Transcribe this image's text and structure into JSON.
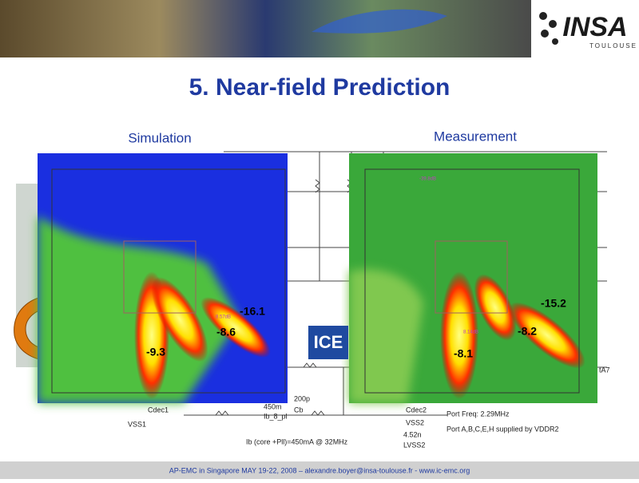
{
  "header": {
    "logo": "INSA",
    "logo_sub": "TOULOUSE"
  },
  "title": "5. Near-field Prediction",
  "panels": [
    {
      "label": "Simulation",
      "marker": "8.57dB",
      "values": [
        -9.3,
        -8.6,
        -16.1
      ]
    },
    {
      "label": "Measurement",
      "marker": "8.14dB",
      "top_marker": "-39.8dB",
      "values": [
        -8.1,
        -8.2,
        -15.2
      ]
    }
  ],
  "circuit": {
    "block": "ICE",
    "labels": [
      "Cdec1",
      "VSS1",
      "200p",
      "Cb",
      "450m",
      "Ib_8_pl",
      "Cdec2",
      "VSS2",
      "4.52n",
      "LVSS2",
      "Port Freq: 2.29MHz",
      "Port A,B,C,E,H supplied by VDDR2",
      "Ib (core +Pll)=450mA @ 32MHz",
      "tA7"
    ]
  },
  "footer": "AP-EMC in Singapore MAY 19-22, 2008 – alexandre.boyer@insa-toulouse.fr - www.ic-emc.org"
}
